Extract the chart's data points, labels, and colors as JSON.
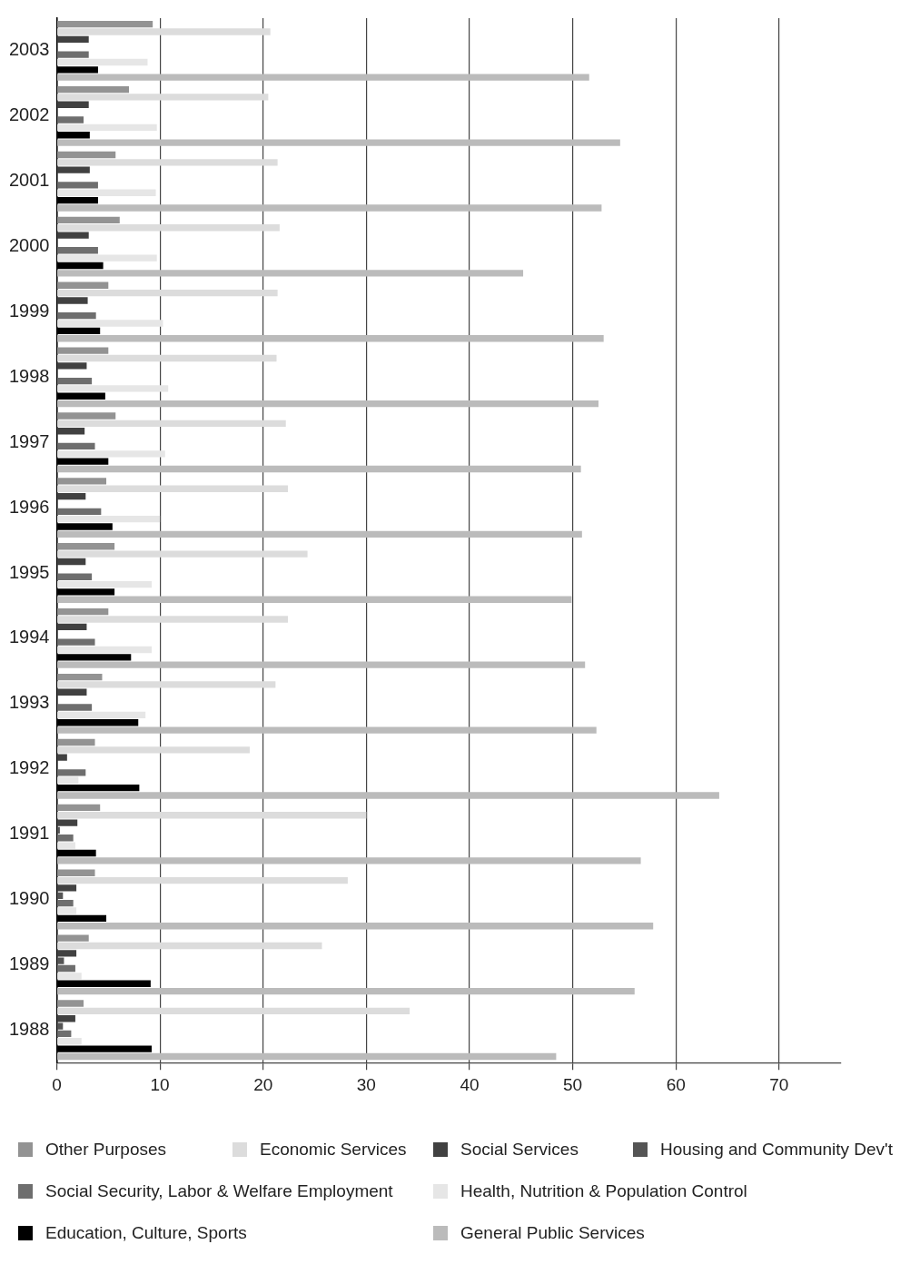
{
  "chart_data": {
    "type": "bar",
    "orientation": "horizontal",
    "categories": [
      "2003",
      "2002",
      "2001",
      "2000",
      "1999",
      "1998",
      "1997",
      "1996",
      "1995",
      "1994",
      "1993",
      "1992",
      "1991",
      "1990",
      "1989",
      "1988"
    ],
    "series": [
      {
        "name": "Other Purposes",
        "color": "#939393",
        "values": [
          9.3,
          7.0,
          5.7,
          6.1,
          5.0,
          5.0,
          5.7,
          4.8,
          5.6,
          5.0,
          4.4,
          3.7,
          4.2,
          3.7,
          3.1,
          2.6
        ]
      },
      {
        "name": "Economic Services",
        "color": "#dcdcdc",
        "values": [
          20.7,
          20.5,
          21.4,
          21.6,
          21.4,
          21.3,
          22.2,
          22.4,
          24.3,
          22.4,
          21.2,
          18.7,
          30.0,
          28.2,
          25.7,
          34.2
        ]
      },
      {
        "name": "Social Services",
        "color": "#414141",
        "values": [
          3.1,
          3.1,
          3.2,
          3.1,
          3.0,
          2.9,
          2.7,
          2.8,
          2.8,
          2.9,
          2.9,
          1.0,
          2.0,
          1.9,
          1.9,
          1.8
        ]
      },
      {
        "name": "Housing and Community Dev't",
        "color": "#555555",
        "values": [
          null,
          null,
          null,
          null,
          null,
          null,
          null,
          null,
          null,
          null,
          null,
          null,
          0.3,
          0.6,
          0.7,
          0.6
        ]
      },
      {
        "name": "Social Security, Labor & Welfare Employment",
        "color": "#6e6e6e",
        "values": [
          3.1,
          2.6,
          4.0,
          4.0,
          3.8,
          3.4,
          3.7,
          4.3,
          3.4,
          3.7,
          3.4,
          2.8,
          1.6,
          1.6,
          1.8,
          1.4
        ]
      },
      {
        "name": "Health, Nutrition & Population Control",
        "color": "#e6e6e6",
        "values": [
          8.8,
          9.7,
          9.6,
          9.7,
          10.3,
          10.8,
          10.5,
          10.0,
          9.2,
          9.2,
          8.6,
          2.1,
          1.8,
          1.9,
          2.4,
          2.4
        ]
      },
      {
        "name": "Education, Culture, Sports",
        "color": "#000000",
        "values": [
          4.0,
          3.2,
          4.0,
          4.5,
          4.2,
          4.7,
          5.0,
          5.4,
          5.6,
          7.2,
          7.9,
          8.0,
          3.8,
          4.8,
          9.1,
          9.2
        ]
      },
      {
        "name": "General Public Services",
        "color": "#bbbbbb",
        "values": [
          51.6,
          54.6,
          52.8,
          45.2,
          53.0,
          52.5,
          50.8,
          50.9,
          49.9,
          51.2,
          52.3,
          64.2,
          56.6,
          57.8,
          56.0,
          48.4
        ]
      }
    ],
    "xlim": [
      0,
      76
    ],
    "xticks": [
      0,
      10,
      20,
      30,
      40,
      50,
      60,
      70
    ],
    "grid": "x",
    "legend": "bottom"
  }
}
